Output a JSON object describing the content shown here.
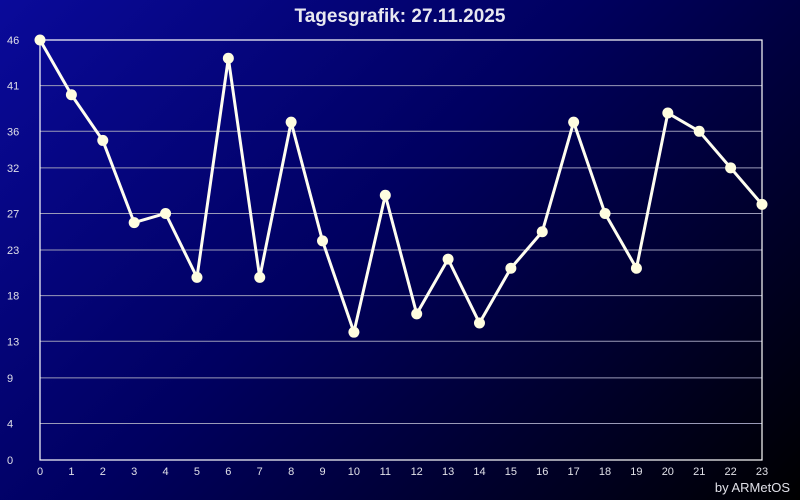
{
  "chart_data": {
    "type": "line",
    "title": "Tagesgrafik: 27.11.2025",
    "x": [
      0,
      1,
      2,
      3,
      4,
      5,
      6,
      7,
      8,
      9,
      10,
      11,
      12,
      13,
      14,
      15,
      16,
      17,
      18,
      19,
      20,
      21,
      22,
      23
    ],
    "values": [
      46,
      40,
      35,
      26,
      27,
      20,
      44,
      20,
      37,
      24,
      14,
      29,
      16,
      22,
      15,
      21,
      25,
      37,
      27,
      21,
      38,
      36,
      32,
      28
    ],
    "yticks": [
      0,
      4,
      9,
      13,
      18,
      23,
      27,
      32,
      36,
      41,
      46
    ],
    "ylim": [
      0,
      46
    ],
    "xlim": [
      0,
      23
    ],
    "grid": true,
    "line_color": "#fffef0",
    "marker_color": "#fffde0"
  },
  "credit": "by ARMetOS"
}
